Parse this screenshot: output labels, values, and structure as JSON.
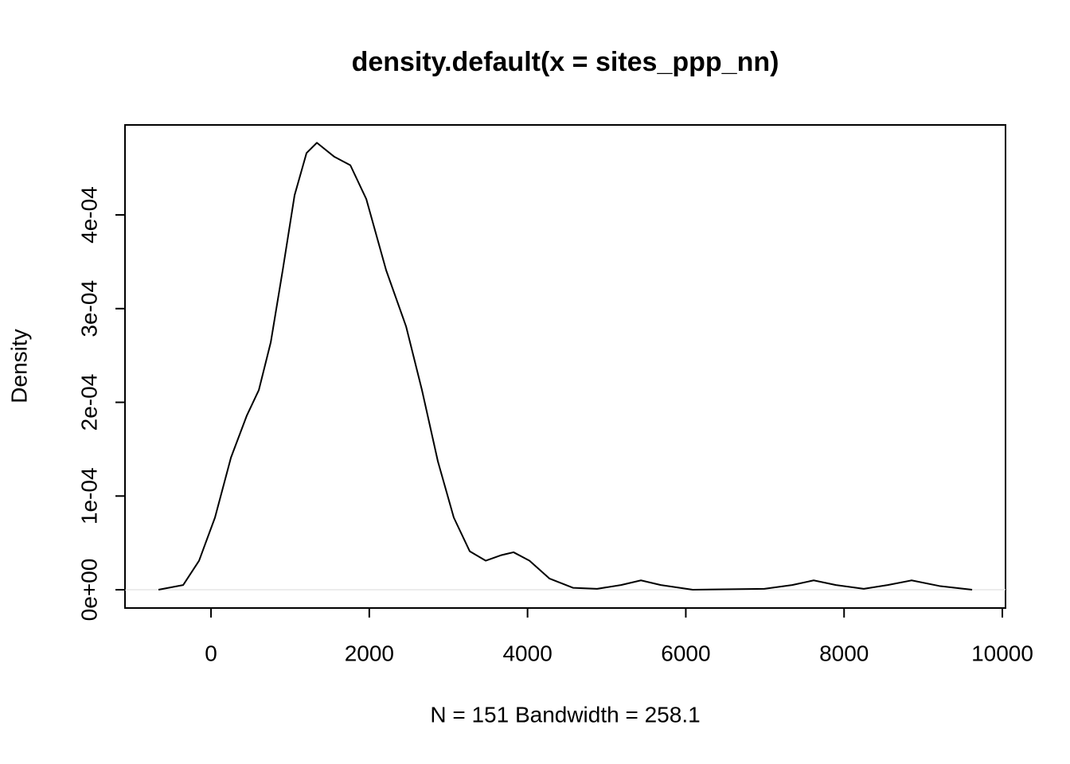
{
  "chart_data": {
    "type": "line",
    "title": "density.default(x = sites_ppp_nn)",
    "x_label": "N = 151   Bandwidth = 258.1",
    "y_label": "Density",
    "x": [
      -664,
      -352,
      -151,
      50,
      252,
      453,
      604,
      755,
      906,
      1056,
      1207,
      1338,
      1559,
      1761,
      1962,
      2213,
      2465,
      2666,
      2867,
      3068,
      3270,
      3471,
      3672,
      3823,
      4024,
      4276,
      4577,
      4879,
      5181,
      5433,
      5684,
      6087,
      6992,
      7344,
      7616,
      7897,
      8249,
      8551,
      8853,
      9205,
      9618
    ],
    "series": [
      {
        "name": "density",
        "color": "#000000",
        "values": [
          0,
          5e-06,
          3.1e-05,
          7.7e-05,
          0.000141,
          0.000186,
          0.000213,
          0.000264,
          0.000341,
          0.000421,
          0.000466,
          0.000477,
          0.000462,
          0.000453,
          0.000417,
          0.000341,
          0.000281,
          0.000213,
          0.000137,
          7.7e-05,
          4.1e-05,
          3.1e-05,
          3.7e-05,
          4e-05,
          3.1e-05,
          1.2e-05,
          2e-06,
          1e-06,
          5e-06,
          1e-05,
          5e-06,
          0,
          1e-06,
          5e-06,
          1e-05,
          5e-06,
          1e-06,
          5e-06,
          1e-05,
          4e-06,
          0
        ]
      }
    ],
    "xlim": [
      -1087,
      10040
    ],
    "ylim": [
      -1.95e-05,
      0.000496
    ],
    "xticks": [
      0,
      2000,
      4000,
      6000,
      8000,
      10000
    ],
    "yticks": [
      {
        "value": 0,
        "label": "0e+00"
      },
      {
        "value": 0.0001,
        "label": "1e-04"
      },
      {
        "value": 0.0002,
        "label": "2e-04"
      },
      {
        "value": 0.0003,
        "label": "3e-04"
      },
      {
        "value": 0.0004,
        "label": "4e-04"
      }
    ],
    "grid": false
  }
}
